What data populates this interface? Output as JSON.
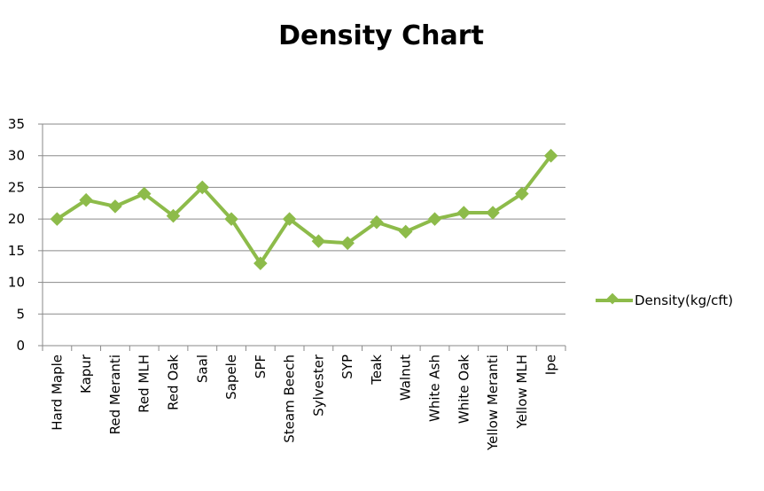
{
  "chart_data": {
    "type": "line",
    "title": "Density Chart",
    "xlabel": "",
    "ylabel": "",
    "ylim": [
      0,
      35
    ],
    "yticks": [
      "0",
      "5",
      "10",
      "15",
      "20",
      "25",
      "30",
      "35"
    ],
    "grid": true,
    "legend_position": "right",
    "categories": [
      "Hard Maple",
      "Kapur",
      "Red Meranti",
      "Red MLH",
      "Red Oak",
      "Saal",
      "Sapele",
      "SPF",
      "Steam Beech",
      "Sylvester",
      "SYP",
      "Teak",
      "Walnut",
      "White Ash",
      "White Oak",
      "Yellow Meranti",
      "Yellow MLH",
      "Ipe"
    ],
    "series": [
      {
        "name": "Density(kg/cft)",
        "color": "#8dbb4a",
        "marker": "diamond",
        "values": [
          20,
          23,
          22,
          24,
          20.5,
          25,
          20,
          13,
          20,
          16.5,
          16.2,
          19.5,
          18,
          20,
          21,
          21,
          24,
          30
        ]
      }
    ]
  }
}
